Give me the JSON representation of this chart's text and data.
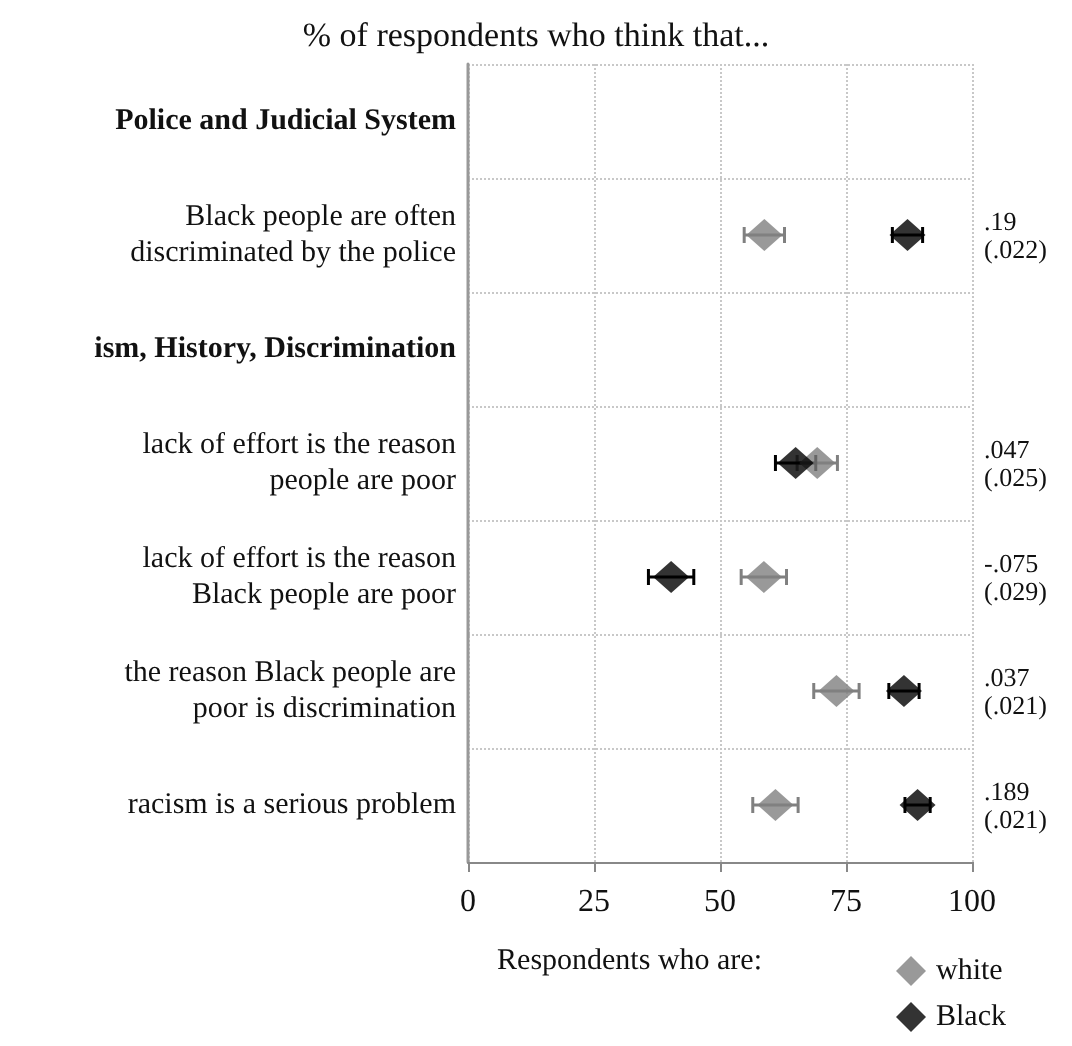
{
  "chart_data": {
    "type": "scatter",
    "orientation": "horizontal",
    "title": "% of respondents who think that...",
    "legend_title": "Respondents who are:",
    "categories": [
      "Police and Judicial System",
      "Black people are often discriminated by the police",
      "ism, History, Discrimination",
      "lack of effort is the reason people are poor",
      "lack of effort is the reason Black people are poor",
      "the reason Black people are poor is discrimination",
      "racism is a serious problem"
    ],
    "series": [
      {
        "name": "white",
        "color": "#808080",
        "values": [
          null,
          58.8,
          null,
          69.3,
          58.7,
          73.1,
          61
        ],
        "errors": [
          null,
          4,
          null,
          4,
          4.5,
          4.5,
          4.5
        ]
      },
      {
        "name": "Black",
        "color": "#000000",
        "values": [
          null,
          87.2,
          null,
          65,
          40.3,
          86.5,
          89.2
        ],
        "errors": [
          null,
          3,
          null,
          4,
          4.5,
          3,
          2.5
        ]
      }
    ],
    "xlim": [
      0,
      100
    ],
    "xticks": [
      0,
      25,
      50,
      75,
      100
    ],
    "grid": true,
    "legend": "bottom",
    "marker": "diamond",
    "annotations": [
      ".19\n(.022)",
      ".047\n(.025)",
      "-.075\n(.029)",
      ".037\n(.021)",
      ".189\n(.021)"
    ]
  }
}
